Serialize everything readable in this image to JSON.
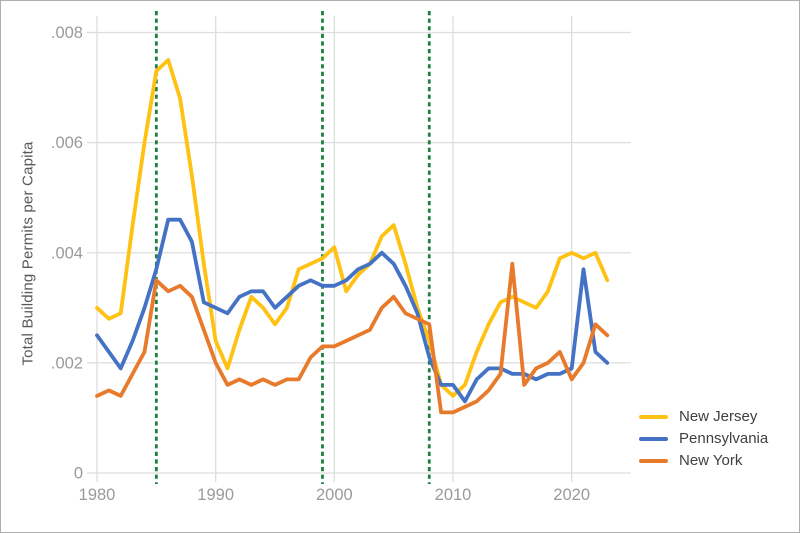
{
  "colors": {
    "grid": "#dedede",
    "tick_label": "#9a9a9a",
    "axis_title": "#595959",
    "legend_text": "#404040",
    "reference_line": "#1e8040",
    "background": "#ffffff",
    "frame_border": "#aeaeae"
  },
  "chart_data": {
    "type": "line",
    "title": "",
    "xlabel": "",
    "ylabel": "Total Building Permits per Capita",
    "xlim": [
      1980,
      2025
    ],
    "ylim": [
      0,
      0.0083
    ],
    "grid": true,
    "legend_position": "bottom-right",
    "x_ticks": [
      {
        "v": 1980,
        "label": "1980"
      },
      {
        "v": 1990,
        "label": "1990"
      },
      {
        "v": 2000,
        "label": "2000"
      },
      {
        "v": 2010,
        "label": "2010"
      },
      {
        "v": 2020,
        "label": "2020"
      }
    ],
    "y_ticks": [
      {
        "v": 0,
        "label": "0"
      },
      {
        "v": 0.002,
        "label": ".002"
      },
      {
        "v": 0.004,
        "label": ".004"
      },
      {
        "v": 0.006,
        "label": ".006"
      },
      {
        "v": 0.008,
        "label": ".008"
      }
    ],
    "reference_lines": {
      "style": "dotted",
      "color": "#1e8040",
      "x_values": [
        1985,
        1999,
        2008
      ]
    },
    "years": [
      1980,
      1981,
      1982,
      1983,
      1984,
      1985,
      1986,
      1987,
      1988,
      1989,
      1990,
      1991,
      1992,
      1993,
      1994,
      1995,
      1996,
      1997,
      1998,
      1999,
      2000,
      2001,
      2002,
      2003,
      2004,
      2005,
      2006,
      2007,
      2008,
      2009,
      2010,
      2011,
      2012,
      2013,
      2014,
      2015,
      2016,
      2017,
      2018,
      2019,
      2020,
      2021,
      2022,
      2023
    ],
    "series": [
      {
        "name": "New Jersey",
        "color": "#ffc112",
        "values": [
          0.003,
          0.0028,
          0.0029,
          0.0045,
          0.006,
          0.0073,
          0.0075,
          0.0068,
          0.0054,
          0.0038,
          0.0024,
          0.0019,
          0.0026,
          0.0032,
          0.003,
          0.0027,
          0.003,
          0.0037,
          0.0038,
          0.0039,
          0.0041,
          0.0033,
          0.0036,
          0.0038,
          0.0043,
          0.0045,
          0.0038,
          0.003,
          0.0024,
          0.0016,
          0.0014,
          0.0016,
          0.0022,
          0.0027,
          0.0031,
          0.0032,
          0.0031,
          0.003,
          0.0033,
          0.0039,
          0.004,
          0.0039,
          0.004,
          0.0035
        ]
      },
      {
        "name": "Pennsylvania",
        "color": "#4472c4",
        "values": [
          0.0025,
          0.0022,
          0.0019,
          0.0024,
          0.003,
          0.0037,
          0.0046,
          0.0046,
          0.0042,
          0.0031,
          0.003,
          0.0029,
          0.0032,
          0.0033,
          0.0033,
          0.003,
          0.0032,
          0.0034,
          0.0035,
          0.0034,
          0.0034,
          0.0035,
          0.0037,
          0.0038,
          0.004,
          0.0038,
          0.0034,
          0.0029,
          0.0021,
          0.0016,
          0.0016,
          0.0013,
          0.0017,
          0.0019,
          0.0019,
          0.0018,
          0.0018,
          0.0017,
          0.0018,
          0.0018,
          0.0019,
          0.0037,
          0.0022,
          0.002
        ]
      },
      {
        "name": "New York",
        "color": "#e87a2c",
        "values": [
          0.0014,
          0.0015,
          0.0014,
          0.0018,
          0.0022,
          0.0035,
          0.0033,
          0.0034,
          0.0032,
          0.0026,
          0.002,
          0.0016,
          0.0017,
          0.0016,
          0.0017,
          0.0016,
          0.0017,
          0.0017,
          0.0021,
          0.0023,
          0.0023,
          0.0024,
          0.0025,
          0.0026,
          0.003,
          0.0032,
          0.0029,
          0.0028,
          0.0027,
          0.0011,
          0.0011,
          0.0012,
          0.0013,
          0.0015,
          0.0018,
          0.0038,
          0.0016,
          0.0019,
          0.002,
          0.0022,
          0.0017,
          0.002,
          0.0027,
          0.0025
        ]
      }
    ]
  }
}
